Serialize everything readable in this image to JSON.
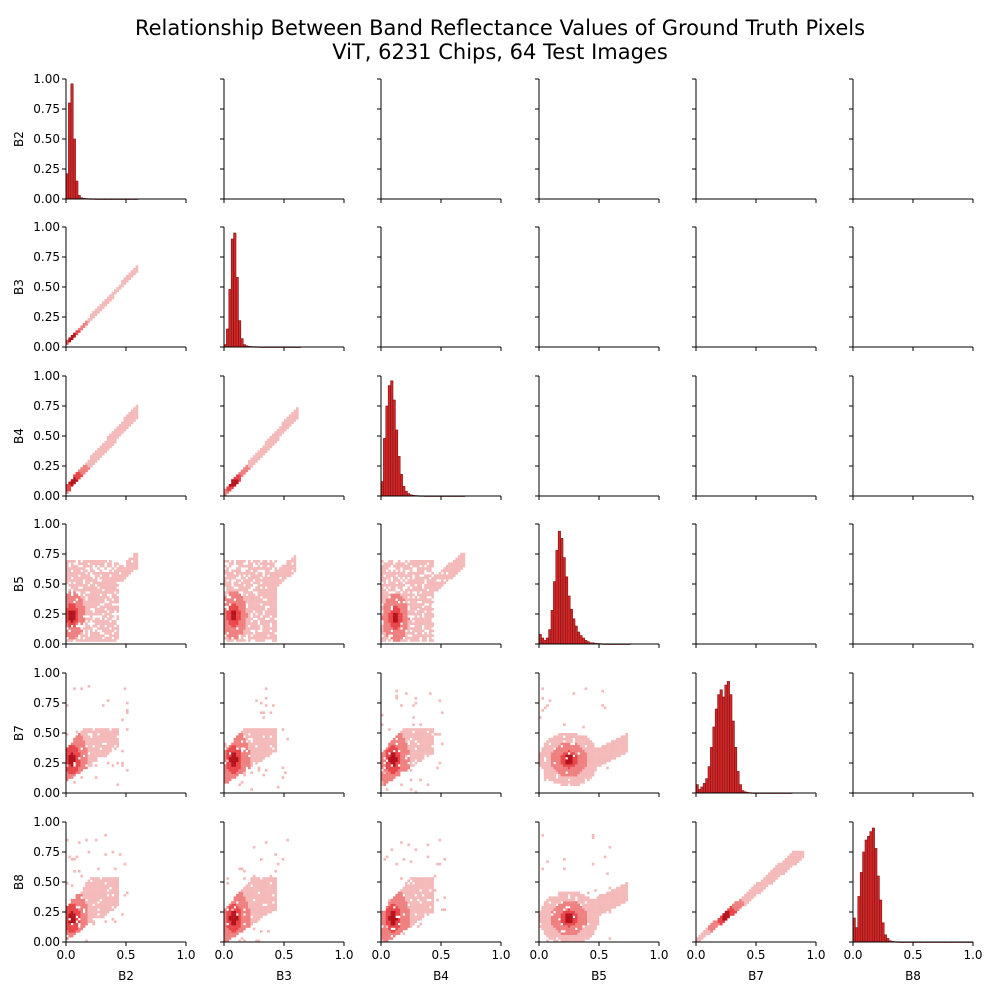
{
  "title_line1": "Relationship Between Band Reflectance Values of Ground Truth Pixels",
  "title_line2": "ViT, 6231 Chips, 64 Test Images",
  "colors": {
    "hist_bar": "#d62728",
    "hist_edge": "#7a1515",
    "density_light": "#f4b9b9",
    "density_mid": "#ef8080",
    "density_high": "#e8464a",
    "density_peak": "#b5121b"
  },
  "chart_data": {
    "type": "pairplot",
    "bands": [
      "B2",
      "B3",
      "B4",
      "B5",
      "B7",
      "B8"
    ],
    "xlim": [
      0.0,
      1.0
    ],
    "ylim": [
      0.0,
      1.0
    ],
    "x_ticks": [
      "0.0",
      "0.5",
      "1.0"
    ],
    "y_ticks": [
      "0.00",
      "0.25",
      "0.50",
      "0.75",
      "1.00"
    ],
    "diagonal": "histogram",
    "lower_triangle": "2d-histogram",
    "upper_triangle": "empty",
    "histograms": {
      "B2": {
        "bin_width": 0.02,
        "values": [
          0.21,
          0.8,
          0.96,
          0.5,
          0.15,
          0.03,
          0.01,
          0.005,
          0.004,
          0.003,
          0.002,
          0.002,
          0.001,
          0.001,
          0.001,
          0.001,
          0.001,
          0.001,
          0.001,
          0.001,
          0.001,
          0.001,
          0.001,
          0.001,
          0.001,
          0.001,
          0.001,
          0.001,
          0.001,
          0.001
        ]
      },
      "B3": {
        "bin_width": 0.02,
        "values": [
          0.02,
          0.15,
          0.48,
          0.9,
          0.95,
          0.58,
          0.22,
          0.07,
          0.02,
          0.01,
          0.005,
          0.004,
          0.003,
          0.002,
          0.002,
          0.001,
          0.001,
          0.001,
          0.001,
          0.001,
          0.001,
          0.001,
          0.001,
          0.001,
          0.001,
          0.001,
          0.001,
          0.001,
          0.001,
          0.001,
          0.001,
          0.001
        ]
      },
      "B4": {
        "bin_width": 0.02,
        "values": [
          0.12,
          0.48,
          0.75,
          0.92,
          0.96,
          0.8,
          0.55,
          0.33,
          0.18,
          0.08,
          0.04,
          0.02,
          0.01,
          0.006,
          0.004,
          0.003,
          0.002,
          0.002,
          0.001,
          0.001,
          0.001,
          0.001,
          0.001,
          0.001,
          0.001,
          0.001,
          0.001,
          0.001,
          0.001,
          0.001,
          0.001,
          0.001,
          0.001,
          0.001,
          0.001
        ]
      },
      "B5": {
        "bin_width": 0.02,
        "values": [
          0.08,
          0.05,
          0.03,
          0.05,
          0.12,
          0.28,
          0.52,
          0.78,
          0.94,
          0.88,
          0.72,
          0.56,
          0.4,
          0.29,
          0.21,
          0.15,
          0.1,
          0.07,
          0.05,
          0.03,
          0.02,
          0.01,
          0.01,
          0.005,
          0.004,
          0.003,
          0.002,
          0.001,
          0.001,
          0.001,
          0.001,
          0.001,
          0.001,
          0.001,
          0.001,
          0.001,
          0.001,
          0.001
        ]
      },
      "B7": {
        "bin_width": 0.02,
        "values": [
          0.07,
          0.03,
          0.05,
          0.08,
          0.12,
          0.22,
          0.38,
          0.55,
          0.7,
          0.82,
          0.86,
          0.8,
          0.9,
          0.93,
          0.82,
          0.6,
          0.38,
          0.18,
          0.07,
          0.02,
          0.01,
          0.005,
          0.003,
          0.002,
          0.001,
          0.001,
          0.001,
          0.001,
          0.001,
          0.001,
          0.001,
          0.001,
          0.001,
          0.001,
          0.001,
          0.001,
          0.001,
          0.001,
          0.001,
          0.001
        ]
      },
      "B8": {
        "bin_width": 0.02,
        "values": [
          0.2,
          0.12,
          0.38,
          0.58,
          0.75,
          0.85,
          0.88,
          0.92,
          0.95,
          0.78,
          0.55,
          0.35,
          0.16,
          0.06,
          0.03,
          0.01,
          0.005,
          0.003,
          0.002,
          0.001,
          0.001,
          0.001,
          0.001,
          0.001,
          0.001,
          0.001,
          0.001,
          0.001,
          0.001,
          0.001,
          0.001,
          0.001,
          0.001,
          0.001,
          0.001,
          0.001,
          0.001,
          0.001,
          0.001,
          0.001,
          0.001,
          0.001,
          0.001,
          0.001,
          0.001,
          0.001,
          0.001,
          0.001,
          0.001,
          0.001
        ]
      }
    },
    "pair_densities": [
      {
        "x": "B2",
        "y": "B3",
        "peak": [
          0.05,
          0.08
        ],
        "shape": "linear",
        "slope": 1.05,
        "spread": 0.03,
        "xmax": 0.6
      },
      {
        "x": "B2",
        "y": "B4",
        "peak": [
          0.06,
          0.12
        ],
        "shape": "linear",
        "slope": 1.1,
        "spread": 0.06,
        "xmax": 0.6
      },
      {
        "x": "B3",
        "y": "B4",
        "peak": [
          0.08,
          0.11
        ],
        "shape": "linear",
        "slope": 1.1,
        "spread": 0.05,
        "xmax": 0.62
      },
      {
        "x": "B2",
        "y": "B5",
        "peak": [
          0.05,
          0.24
        ],
        "shape": "diffuse",
        "xmax": 0.6,
        "ymax": 0.75
      },
      {
        "x": "B3",
        "y": "B5",
        "peak": [
          0.08,
          0.24
        ],
        "shape": "diffuse",
        "xmax": 0.6,
        "ymax": 0.75
      },
      {
        "x": "B4",
        "y": "B5",
        "peak": [
          0.12,
          0.22
        ],
        "shape": "diffuse",
        "xmax": 0.7,
        "ymax": 0.75
      },
      {
        "x": "B2",
        "y": "B7",
        "peak": [
          0.05,
          0.28
        ],
        "shape": "linear-diffuse",
        "xmax": 0.6,
        "ymax": 0.9
      },
      {
        "x": "B3",
        "y": "B7",
        "peak": [
          0.08,
          0.28
        ],
        "shape": "linear-diffuse",
        "xmax": 0.6,
        "ymax": 0.9
      },
      {
        "x": "B4",
        "y": "B7",
        "peak": [
          0.1,
          0.28
        ],
        "shape": "linear-diffuse",
        "xmax": 0.6,
        "ymax": 0.9
      },
      {
        "x": "B5",
        "y": "B7",
        "peak": [
          0.25,
          0.28
        ],
        "shape": "blob",
        "xmax": 0.75,
        "ymax": 0.9
      },
      {
        "x": "B7",
        "y": "B7",
        "skip": true
      },
      {
        "x": "B2",
        "y": "B8",
        "peak": [
          0.05,
          0.2
        ],
        "shape": "linear-diffuse",
        "xmax": 0.6,
        "ymax": 0.9
      },
      {
        "x": "B3",
        "y": "B8",
        "peak": [
          0.08,
          0.2
        ],
        "shape": "linear-diffuse",
        "xmax": 0.6,
        "ymax": 0.9
      },
      {
        "x": "B4",
        "y": "B8",
        "peak": [
          0.1,
          0.2
        ],
        "shape": "linear-diffuse",
        "xmax": 0.6,
        "ymax": 0.9
      },
      {
        "x": "B5",
        "y": "B8",
        "peak": [
          0.25,
          0.2
        ],
        "shape": "blob",
        "xmax": 0.75,
        "ymax": 0.9
      },
      {
        "x": "B7",
        "y": "B8",
        "peak": [
          0.25,
          0.22
        ],
        "shape": "linear",
        "slope": 0.85,
        "spread": 0.05,
        "xmax": 0.9
      }
    ]
  }
}
